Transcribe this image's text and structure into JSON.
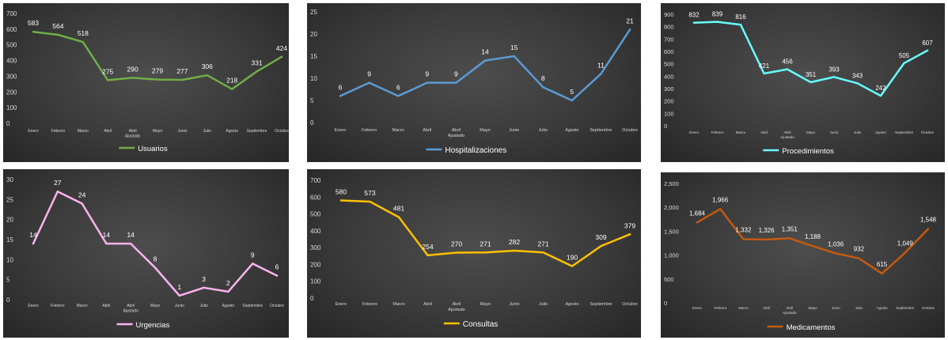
{
  "chart_data": [
    {
      "type": "line",
      "categories": [
        "Enero",
        "Febrero",
        "Marzo",
        "Abril",
        "Abril Ajustado",
        "Mayo",
        "Junio",
        "Julio",
        "Agosto",
        "Septiembre",
        "Octubre"
      ],
      "series": [
        {
          "name": "Usuarios",
          "values": [
            583,
            564,
            518,
            275,
            290,
            279,
            277,
            306,
            218,
            331,
            424
          ],
          "color": "#70ad47"
        }
      ],
      "ylim": [
        0,
        700
      ],
      "yticks": [
        0,
        100,
        200,
        300,
        400,
        500,
        600,
        700
      ],
      "ytick_labels": [
        "0",
        "100",
        "200",
        "300",
        "400",
        "500",
        "600",
        "700"
      ],
      "value_labels": [
        "583",
        "564",
        "518",
        "275",
        "290",
        "279",
        "277",
        "306",
        "218",
        "331",
        "424"
      ],
      "grid": false,
      "legend": "bottom"
    },
    {
      "type": "line",
      "categories": [
        "Enero",
        "Febrero",
        "Marzo",
        "Abril",
        "Abril Ajustado",
        "Mayo",
        "Junio",
        "Julio",
        "Agosto",
        "Septiembre",
        "Octubre"
      ],
      "series": [
        {
          "name": "Hospitalizaciones",
          "values": [
            6,
            9,
            6,
            9,
            9,
            14,
            15,
            8,
            5,
            11,
            21
          ],
          "color": "#5b9bd5"
        }
      ],
      "ylim": [
        0,
        25
      ],
      "yticks": [
        0,
        5,
        10,
        15,
        20,
        25
      ],
      "ytick_labels": [
        "0",
        "5",
        "10",
        "15",
        "20",
        "25"
      ],
      "value_labels": [
        "6",
        "9",
        "6",
        "9",
        "9",
        "14",
        "15",
        "8",
        "5",
        "11",
        "21"
      ],
      "grid": false,
      "legend": "bottom"
    },
    {
      "type": "line",
      "categories": [
        "Enero",
        "Febrero",
        "Marzo",
        "Abril",
        "Abril Ajustado",
        "Mayo",
        "Junio",
        "Julio",
        "Agosto",
        "Septiembre",
        "Octubre"
      ],
      "series": [
        {
          "name": "Procedimientos",
          "values": [
            832,
            839,
            816,
            421,
            456,
            351,
            393,
            343,
            242,
            505,
            607
          ],
          "color": "#66ffff"
        }
      ],
      "ylim": [
        0,
        900
      ],
      "yticks": [
        0,
        100,
        200,
        300,
        400,
        500,
        600,
        700,
        800,
        900
      ],
      "ytick_labels": [
        "0",
        "100",
        "200",
        "300",
        "400",
        "500",
        "600",
        "700",
        "800",
        "900"
      ],
      "value_labels": [
        "832",
        "839",
        "816",
        "421",
        "456",
        "351",
        "393",
        "343",
        "242",
        "505",
        "607"
      ],
      "grid": false,
      "legend": "bottom"
    },
    {
      "type": "line",
      "categories": [
        "Enero",
        "Febrero",
        "Marzo",
        "Abril",
        "Abril Ajustado",
        "Mayo",
        "Junio",
        "Julio",
        "Agosto",
        "Septiembre",
        "Octubre"
      ],
      "series": [
        {
          "name": "Urgencias",
          "values": [
            14,
            27,
            24,
            14,
            14,
            8,
            1,
            3,
            2,
            9,
            6
          ],
          "color": "#ffb3f0"
        }
      ],
      "ylim": [
        0,
        30
      ],
      "yticks": [
        0,
        5,
        10,
        15,
        20,
        25,
        30
      ],
      "ytick_labels": [
        "0",
        "5",
        "10",
        "15",
        "20",
        "25",
        "30"
      ],
      "value_labels": [
        "14",
        "27",
        "24",
        "14",
        "14",
        "8",
        "1",
        "3",
        "2",
        "9",
        "6"
      ],
      "grid": false,
      "legend": "bottom"
    },
    {
      "type": "line",
      "categories": [
        "Enero",
        "Febrero",
        "Marzo",
        "Abril",
        "Abril Ajustado",
        "Mayo",
        "Junio",
        "Julio",
        "Agosto",
        "Septiembre",
        "Octubre"
      ],
      "series": [
        {
          "name": "Consultas",
          "values": [
            580,
            573,
            481,
            254,
            270,
            271,
            282,
            271,
            190,
            309,
            379
          ],
          "color": "#ffc000"
        }
      ],
      "ylim": [
        0,
        700
      ],
      "yticks": [
        0,
        100,
        200,
        300,
        400,
        500,
        600,
        700
      ],
      "ytick_labels": [
        "0",
        "100",
        "200",
        "300",
        "400",
        "500",
        "600",
        "700"
      ],
      "value_labels": [
        "580",
        "573",
        "481",
        "254",
        "270",
        "271",
        "282",
        "271",
        "190",
        "309",
        "379"
      ],
      "grid": false,
      "legend": "bottom"
    },
    {
      "type": "line",
      "categories": [
        "Enero",
        "Febrero",
        "Marzo",
        "Abril",
        "Abril Ajustado",
        "Mayo",
        "Junio",
        "Julio",
        "Agosto",
        "Septiembre",
        "Octubre"
      ],
      "series": [
        {
          "name": "Medicamentos",
          "values": [
            1684,
            1966,
            1332,
            1326,
            1351,
            1188,
            1036,
            932,
            615,
            1049,
            1548
          ],
          "color": "#c55a11"
        }
      ],
      "ylim": [
        0,
        2500
      ],
      "yticks": [
        0,
        500,
        1000,
        1500,
        2000,
        2500
      ],
      "ytick_labels": [
        "0",
        "500",
        "1,000",
        "1,500",
        "2,000",
        "2,500"
      ],
      "value_labels": [
        "1,684",
        "1,966",
        "1,332",
        "1,326",
        "1,351",
        "1,188",
        "1,036",
        "932",
        "615",
        "1,049",
        "1,548"
      ],
      "grid": false,
      "legend": "bottom"
    }
  ]
}
